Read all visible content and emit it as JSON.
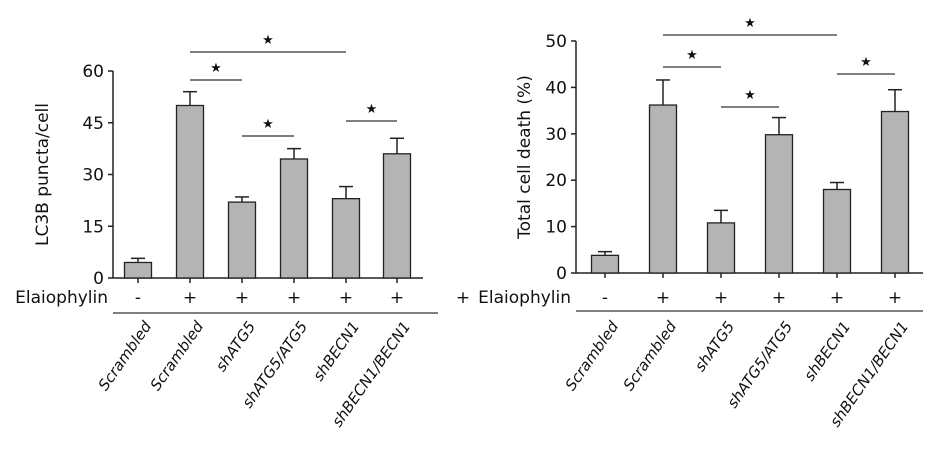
{
  "chart_data": [
    {
      "type": "bar",
      "ylabel": "LC3B puncta/cell",
      "ylim": [
        0,
        60
      ],
      "yticks": [
        0,
        15,
        30,
        45,
        60
      ],
      "categories": [
        "Scrambled",
        "Scrambled",
        "shATG5",
        "shATG5/ATG5",
        "shBECN1",
        "shBECN1/BECN1"
      ],
      "treatment_label": "Elaiophylin",
      "treatment": [
        "-",
        "+",
        "+",
        "+",
        "+",
        "+"
      ],
      "values": [
        4.5,
        50,
        22,
        34.5,
        23,
        36
      ],
      "error_upper": [
        5.7,
        54,
        23.5,
        37.5,
        26.5,
        40.5
      ],
      "significance": [
        {
          "from": 1,
          "to": 4,
          "label": "★"
        },
        {
          "from": 1,
          "to": 2,
          "label": "★"
        },
        {
          "from": 2,
          "to": 3,
          "label": "★"
        },
        {
          "from": 4,
          "to": 5,
          "label": "★"
        }
      ],
      "stray_mark": "+",
      "bar_color": "#b4b4b4"
    },
    {
      "type": "bar",
      "ylabel": "Total cell death (%)",
      "ylim": [
        0,
        50
      ],
      "yticks": [
        0,
        10,
        20,
        30,
        40,
        50
      ],
      "categories": [
        "Scrambled",
        "Scrambled",
        "shATG5",
        "shATG5/ATG5",
        "shBECN1",
        "shBECN1/BECN1"
      ],
      "treatment_label": "Elaiophylin",
      "treatment": [
        "-",
        "+",
        "+",
        "+",
        "+",
        "+"
      ],
      "values": [
        3.8,
        36.2,
        10.8,
        29.8,
        18,
        34.8
      ],
      "error_upper": [
        4.6,
        41.6,
        13.5,
        33.5,
        19.5,
        39.5
      ],
      "significance": [
        {
          "from": 1,
          "to": 4,
          "label": "★"
        },
        {
          "from": 1,
          "to": 2,
          "label": "★"
        },
        {
          "from": 2,
          "to": 3,
          "label": "★"
        },
        {
          "from": 4,
          "to": 5,
          "label": "★"
        }
      ],
      "bar_color": "#b4b4b4"
    }
  ]
}
